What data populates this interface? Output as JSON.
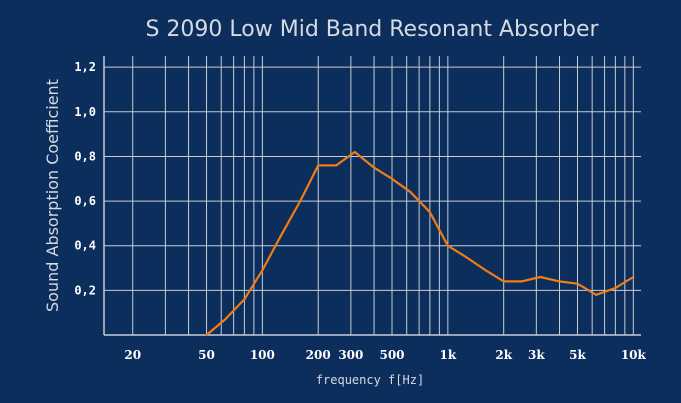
{
  "colors": {
    "background": "#0b2e5c",
    "grid": "#c8ccd6",
    "line": "#f07d14",
    "title": "#d7dae2",
    "ticks": "#ffffff",
    "labels": "#d7dae2"
  },
  "chart_data": {
    "type": "line",
    "title": "S 2090 Low Mid Band Resonant Absorber",
    "xlabel": "frequency f[Hz]",
    "ylabel": "Sound Absorption Coefficient",
    "x_scale": "log",
    "xlim": [
      14,
      11000
    ],
    "ylim": [
      0,
      1.25
    ],
    "grid": true,
    "x_ticks": [
      {
        "value": 20,
        "label": "20"
      },
      {
        "value": 50,
        "label": "50"
      },
      {
        "value": 100,
        "label": "100"
      },
      {
        "value": 200,
        "label": "200"
      },
      {
        "value": 300,
        "label": "300"
      },
      {
        "value": 500,
        "label": "500"
      },
      {
        "value": 1000,
        "label": "1k"
      },
      {
        "value": 2000,
        "label": "2k"
      },
      {
        "value": 3000,
        "label": "3k"
      },
      {
        "value": 5000,
        "label": "5k"
      },
      {
        "value": 10000,
        "label": "10k"
      }
    ],
    "y_ticks": [
      {
        "value": 0.2,
        "label": "0,2"
      },
      {
        "value": 0.4,
        "label": "0,4"
      },
      {
        "value": 0.6,
        "label": "0,6"
      },
      {
        "value": 0.8,
        "label": "0,8"
      },
      {
        "value": 1.0,
        "label": "1,0"
      },
      {
        "value": 1.2,
        "label": "1,2"
      }
    ],
    "series": [
      {
        "x": [
          50,
          63,
          80,
          100,
          125,
          160,
          200,
          250,
          315,
          400,
          500,
          630,
          800,
          1000,
          1250,
          1600,
          2000,
          2500,
          3150,
          4000,
          5000,
          6300,
          8000,
          10000
        ],
        "y": [
          0.0,
          0.07,
          0.16,
          0.29,
          0.44,
          0.6,
          0.76,
          0.76,
          0.82,
          0.75,
          0.7,
          0.64,
          0.55,
          0.4,
          0.35,
          0.29,
          0.24,
          0.24,
          0.26,
          0.24,
          0.23,
          0.18,
          0.21,
          0.26
        ]
      }
    ]
  }
}
